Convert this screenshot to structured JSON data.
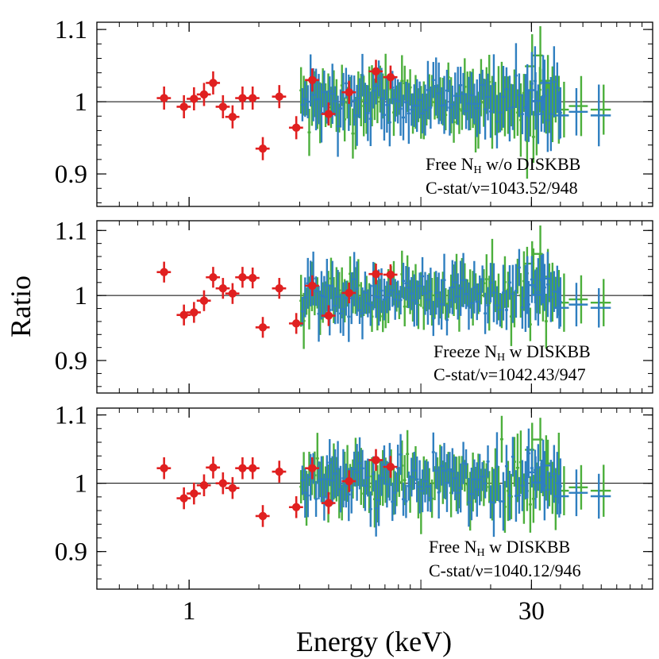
{
  "chart_data": {
    "type": "scatter",
    "ylabel": "Ratio",
    "xlabel": "Energy (keV)",
    "x_scale": "log",
    "xlim": [
      0.4,
      100
    ],
    "x_ticks": [
      {
        "value": 1,
        "label": "1"
      },
      {
        "value": 30,
        "label": "30"
      }
    ],
    "reference_line": 1,
    "series_colors": {
      "xmm": "#e02020",
      "fpma": "#2f7fc0",
      "fpmb": "#4caf3c"
    },
    "panels": [
      {
        "ylim": [
          0.855,
          1.11
        ],
        "y_ticks": [
          {
            "value": 0.9,
            "label": "0.9"
          },
          {
            "value": 1.0,
            "label": "1"
          },
          {
            "value": 1.1,
            "label": "1.1"
          }
        ],
        "annotation": {
          "line1_pre": "Free N",
          "line1_sub": "H",
          "line1_post": " w/o DISKBB",
          "line2": "C-stat/ν=1043.52/948"
        },
        "red_points": [
          {
            "x": 0.78,
            "y": 1.005
          },
          {
            "x": 0.95,
            "y": 0.993
          },
          {
            "x": 1.05,
            "y": 1.004
          },
          {
            "x": 1.16,
            "y": 1.01
          },
          {
            "x": 1.27,
            "y": 1.026
          },
          {
            "x": 1.4,
            "y": 0.993
          },
          {
            "x": 1.54,
            "y": 0.979
          },
          {
            "x": 1.7,
            "y": 1.005
          },
          {
            "x": 1.88,
            "y": 1.005
          },
          {
            "x": 2.08,
            "y": 0.935
          },
          {
            "x": 2.45,
            "y": 1.007
          },
          {
            "x": 2.9,
            "y": 0.964
          },
          {
            "x": 3.4,
            "y": 1.03
          },
          {
            "x": 4.0,
            "y": 0.983
          },
          {
            "x": 4.9,
            "y": 1.013
          },
          {
            "x": 6.4,
            "y": 1.042
          },
          {
            "x": 7.4,
            "y": 1.034
          }
        ]
      },
      {
        "ylim": [
          0.85,
          1.115
        ],
        "y_ticks": [
          {
            "value": 0.9,
            "label": "0.9"
          },
          {
            "value": 1.0,
            "label": "1"
          },
          {
            "value": 1.1,
            "label": "1.1"
          }
        ],
        "annotation": {
          "line1_pre": "Freeze N",
          "line1_sub": "H",
          "line1_post": " w DISKBB",
          "line2": "C-stat/ν=1042.43/947"
        },
        "red_points": [
          {
            "x": 0.78,
            "y": 1.036
          },
          {
            "x": 0.95,
            "y": 0.97
          },
          {
            "x": 1.05,
            "y": 0.974
          },
          {
            "x": 1.16,
            "y": 0.992
          },
          {
            "x": 1.27,
            "y": 1.028
          },
          {
            "x": 1.4,
            "y": 1.011
          },
          {
            "x": 1.54,
            "y": 1.003
          },
          {
            "x": 1.7,
            "y": 1.028
          },
          {
            "x": 1.88,
            "y": 1.027
          },
          {
            "x": 2.08,
            "y": 0.951
          },
          {
            "x": 2.45,
            "y": 1.011
          },
          {
            "x": 2.9,
            "y": 0.957
          },
          {
            "x": 3.4,
            "y": 1.015
          },
          {
            "x": 4.0,
            "y": 0.969
          },
          {
            "x": 4.9,
            "y": 1.004
          },
          {
            "x": 6.4,
            "y": 1.033
          },
          {
            "x": 7.4,
            "y": 1.032
          }
        ]
      },
      {
        "ylim": [
          0.845,
          1.11
        ],
        "y_ticks": [
          {
            "value": 0.9,
            "label": "0.9"
          },
          {
            "value": 1.0,
            "label": "1"
          },
          {
            "value": 1.1,
            "label": "1.1"
          }
        ],
        "annotation": {
          "line1_pre": "Free N",
          "line1_sub": "H",
          "line1_post": " w DISKBB",
          "line2": "C-stat/ν=1040.12/946"
        },
        "red_points": [
          {
            "x": 0.78,
            "y": 1.022
          },
          {
            "x": 0.95,
            "y": 0.978
          },
          {
            "x": 1.05,
            "y": 0.985
          },
          {
            "x": 1.16,
            "y": 0.997
          },
          {
            "x": 1.27,
            "y": 1.023
          },
          {
            "x": 1.4,
            "y": 1.0
          },
          {
            "x": 1.54,
            "y": 0.993
          },
          {
            "x": 1.7,
            "y": 1.022
          },
          {
            "x": 1.88,
            "y": 1.022
          },
          {
            "x": 2.08,
            "y": 0.952
          },
          {
            "x": 2.45,
            "y": 1.017
          },
          {
            "x": 2.9,
            "y": 0.965
          },
          {
            "x": 3.4,
            "y": 1.022
          },
          {
            "x": 4.0,
            "y": 0.971
          },
          {
            "x": 4.9,
            "y": 1.003
          },
          {
            "x": 6.4,
            "y": 1.034
          },
          {
            "x": 7.4,
            "y": 1.024
          }
        ]
      }
    ],
    "nustar_bins": {
      "low_band": {
        "x_min": 3.0,
        "x_max": 20.0,
        "count": 70,
        "y_sigma": 0.018
      },
      "high_band": {
        "x_min": 20.0,
        "x_max": 40.0,
        "count": 22,
        "y_sigma": 0.022
      },
      "wide_bins": [
        {
          "x": 29.5,
          "dx": 1.4,
          "green_y": 1.045,
          "blue_y": 1.02
        },
        {
          "x": 32.0,
          "dx": 1.6,
          "green_y": 1.06,
          "blue_y": 1.005
        },
        {
          "x": 34.5,
          "dx": 1.8,
          "green_y": 1.025,
          "blue_y": 1.03
        },
        {
          "x": 40.5,
          "dx": 3.0,
          "green_y": 0.985,
          "blue_y": 0.985
        },
        {
          "x": 48.0,
          "dx": 4.5,
          "green_y": 0.99,
          "blue_y": 0.99
        },
        {
          "x": 60.0,
          "dx": 6.0,
          "green_y": 0.985,
          "blue_y": 0.985
        }
      ]
    }
  }
}
